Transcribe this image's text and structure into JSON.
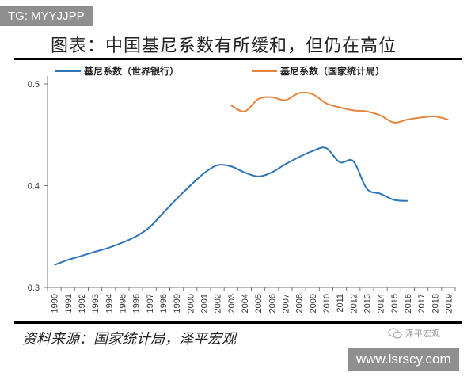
{
  "overlay": {
    "tg_label": "TG: MYYJJPP",
    "site_url": "www.lsrscy.com",
    "brand_mark": "泽平宏观"
  },
  "figure": {
    "title": "图表：中国基尼系数有所缓和，但仍在高位",
    "source": "资料来源：国家统计局，泽平宏观"
  },
  "colors": {
    "series_world_bank": "#2E75B6",
    "series_nbs": "#E8853D"
  },
  "chart_data": {
    "type": "line",
    "x": [
      "1990",
      "1991",
      "1992",
      "1993",
      "1994",
      "1995",
      "1996",
      "1997",
      "1998",
      "1999",
      "2000",
      "2001",
      "2002",
      "2003",
      "2004",
      "2005",
      "2006",
      "2007",
      "2008",
      "2009",
      "2010",
      "2011",
      "2012",
      "2013",
      "2014",
      "2015",
      "2016",
      "2017",
      "2018",
      "2019"
    ],
    "series": [
      {
        "name": "基尼系数（世界银行）",
        "values": [
          0.322,
          0.327,
          0.331,
          0.335,
          0.339,
          0.344,
          0.35,
          0.359,
          0.373,
          0.387,
          0.4,
          0.412,
          0.42,
          0.419,
          0.413,
          0.409,
          0.413,
          0.421,
          0.428,
          0.434,
          0.437,
          0.423,
          0.424,
          0.397,
          0.392,
          0.386,
          0.385,
          null,
          null,
          null
        ]
      },
      {
        "name": "基尼系数（国家统计局）",
        "values": [
          null,
          null,
          null,
          null,
          null,
          null,
          null,
          null,
          null,
          null,
          null,
          null,
          null,
          0.479,
          0.473,
          0.485,
          0.487,
          0.484,
          0.491,
          0.49,
          0.481,
          0.477,
          0.474,
          0.473,
          0.469,
          0.462,
          0.465,
          0.467,
          0.468,
          0.465
        ]
      }
    ],
    "ylim": [
      0.3,
      0.5
    ],
    "yticks": [
      "0.3",
      "0.4",
      "0.5"
    ],
    "grid": false,
    "legend": "top"
  }
}
